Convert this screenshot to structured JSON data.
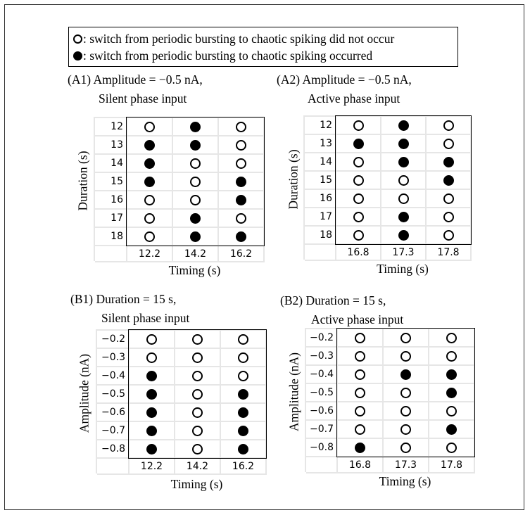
{
  "legend": {
    "open_text": ": switch from periodic bursting to chaotic spiking did not occur",
    "filled_text": ": switch from periodic bursting to chaotic spiking occurred"
  },
  "chart_data": [
    {
      "type": "table",
      "id": "A1",
      "title_line1": "(A1) Amplitude = −0.5 nA,",
      "title_line2": "Silent phase input",
      "xlabel": "Timing (s)",
      "ylabel": "Duration (s)",
      "x": [
        "12.2",
        "14.2",
        "16.2"
      ],
      "y": [
        "12",
        "13",
        "14",
        "15",
        "16",
        "17",
        "18"
      ],
      "values": [
        [
          0,
          1,
          0
        ],
        [
          1,
          1,
          0
        ],
        [
          1,
          0,
          0
        ],
        [
          1,
          0,
          1
        ],
        [
          0,
          0,
          1
        ],
        [
          0,
          1,
          0
        ],
        [
          0,
          1,
          1
        ]
      ]
    },
    {
      "type": "table",
      "id": "A2",
      "title_line1": "(A2) Amplitude = −0.5 nA,",
      "title_line2": "Active phase input",
      "xlabel": "Timing (s)",
      "ylabel": "Duration (s)",
      "x": [
        "16.8",
        "17.3",
        "17.8"
      ],
      "y": [
        "12",
        "13",
        "14",
        "15",
        "16",
        "17",
        "18"
      ],
      "values": [
        [
          0,
          1,
          0
        ],
        [
          1,
          1,
          0
        ],
        [
          0,
          1,
          1
        ],
        [
          0,
          0,
          1
        ],
        [
          0,
          0,
          0
        ],
        [
          0,
          1,
          0
        ],
        [
          0,
          1,
          0
        ]
      ]
    },
    {
      "type": "table",
      "id": "B1",
      "title_line1": "(B1) Duration = 15 s,",
      "title_line2": "Silent phase input",
      "xlabel": "Timing (s)",
      "ylabel": "Amplitude (nA)",
      "x": [
        "12.2",
        "14.2",
        "16.2"
      ],
      "y": [
        "−0.2",
        "−0.3",
        "−0.4",
        "−0.5",
        "−0.6",
        "−0.7",
        "−0.8"
      ],
      "values": [
        [
          0,
          0,
          0
        ],
        [
          0,
          0,
          0
        ],
        [
          1,
          0,
          0
        ],
        [
          1,
          0,
          1
        ],
        [
          1,
          0,
          1
        ],
        [
          1,
          0,
          1
        ],
        [
          1,
          0,
          1
        ]
      ]
    },
    {
      "type": "table",
      "id": "B2",
      "title_line1": "(B2) Duration = 15 s,",
      "title_line2": "Active phase input",
      "xlabel": "Timing (s)",
      "ylabel": "Amplitude (nA)",
      "x": [
        "16.8",
        "17.3",
        "17.8"
      ],
      "y": [
        "−0.2",
        "−0.3",
        "−0.4",
        "−0.5",
        "−0.6",
        "−0.7",
        "−0.8"
      ],
      "values": [
        [
          0,
          0,
          0
        ],
        [
          0,
          0,
          0
        ],
        [
          0,
          1,
          1
        ],
        [
          0,
          0,
          1
        ],
        [
          0,
          0,
          0
        ],
        [
          0,
          0,
          1
        ],
        [
          1,
          0,
          0
        ]
      ]
    }
  ]
}
